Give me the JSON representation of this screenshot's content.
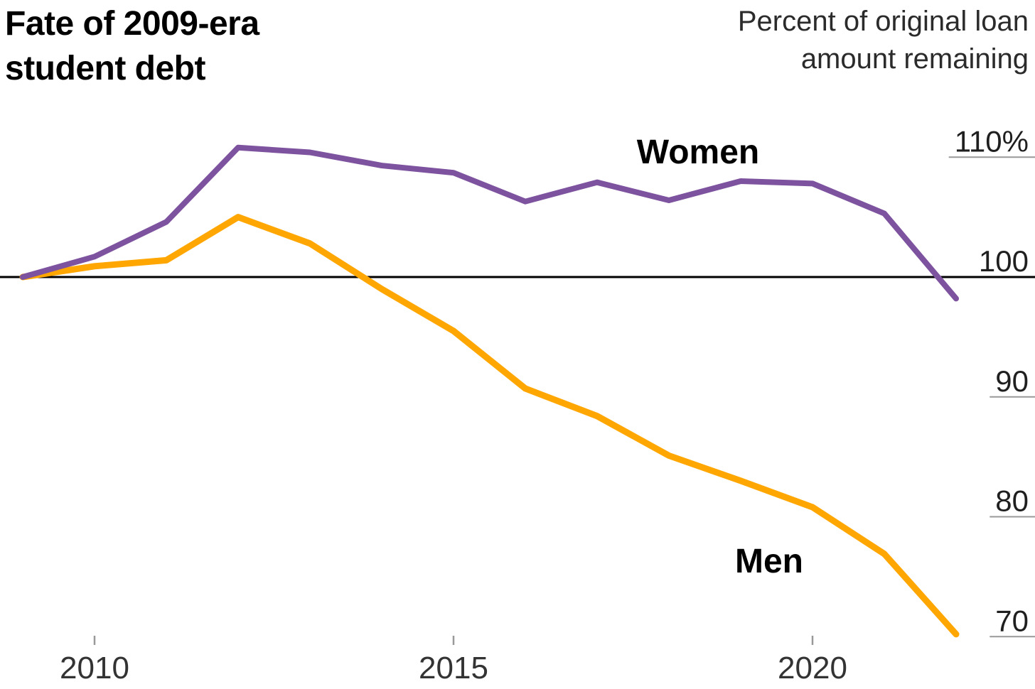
{
  "chart_data": {
    "type": "line",
    "title": "Fate of 2009-era student debt",
    "ylabel": "Percent of original loan amount remaining",
    "xlabel": "",
    "x": [
      2009,
      2010,
      2011,
      2012,
      2013,
      2014,
      2015,
      2016,
      2017,
      2018,
      2019,
      2020,
      2021,
      2022
    ],
    "series": [
      {
        "name": "Women",
        "color": "#7d529e",
        "values": [
          100,
          101.7,
          104.6,
          110.8,
          110.4,
          109.3,
          108.7,
          106.3,
          107.9,
          106.4,
          108.0,
          107.8,
          105.3,
          98.2
        ]
      },
      {
        "name": "Men",
        "color": "#ffa600",
        "values": [
          100,
          100.9,
          101.4,
          105.0,
          102.8,
          99.0,
          95.5,
          90.7,
          88.4,
          85.1,
          83.0,
          80.8,
          76.9,
          70.2
        ]
      }
    ],
    "y_ticks": [
      {
        "value": 110,
        "label": "110%"
      },
      {
        "value": 100,
        "label": "100"
      },
      {
        "value": 90,
        "label": "90"
      },
      {
        "value": 80,
        "label": "80"
      },
      {
        "value": 70,
        "label": "70"
      }
    ],
    "x_ticks": [
      {
        "value": 2010,
        "label": "2010"
      },
      {
        "value": 2015,
        "label": "2015"
      },
      {
        "value": 2020,
        "label": "2020"
      }
    ],
    "baseline": 100,
    "ylim": [
      68,
      112
    ],
    "xlim": [
      2009,
      2022
    ],
    "grid": "off",
    "legend_position": "inline labels next to lines",
    "axis_colors": {
      "baseline": "#000000",
      "tick": "#999999"
    }
  }
}
